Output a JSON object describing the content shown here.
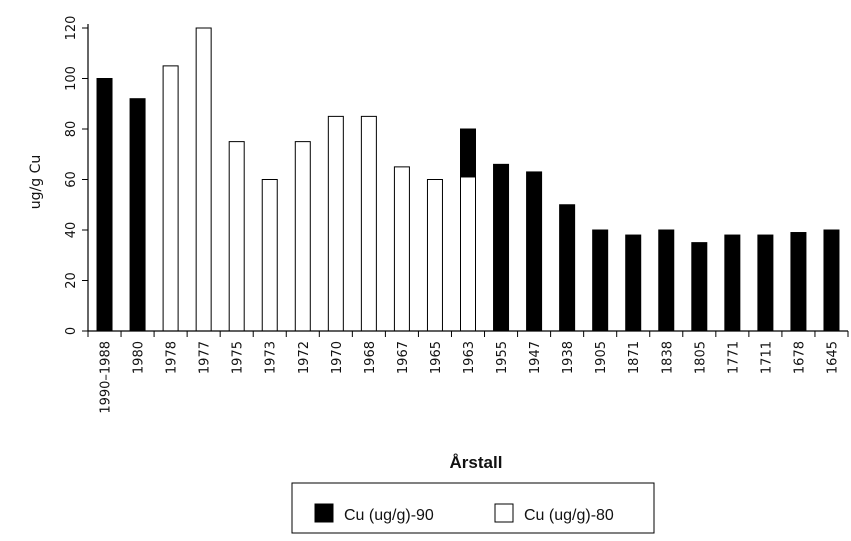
{
  "chart_data": {
    "type": "bar",
    "title": "",
    "xlabel": "Årstall",
    "ylabel": "ug/g Cu",
    "ylim": [
      0,
      120
    ],
    "yticks": [
      0,
      20,
      40,
      60,
      80,
      100,
      120
    ],
    "grid": false,
    "legend_position": "bottom",
    "categories": [
      "1990–1988",
      "1980",
      "1978",
      "1977",
      "1975",
      "1973",
      "1972",
      "1970",
      "1968",
      "1967",
      "1965",
      "1963",
      "1955",
      "1947",
      "1938",
      "1905",
      "1871",
      "1838",
      "1805",
      "1771",
      "1711",
      "1678",
      "1645"
    ],
    "series": [
      {
        "name": "Cu (ug/g)-90",
        "color": "#000000",
        "values": [
          100,
          92,
          null,
          null,
          null,
          null,
          null,
          null,
          null,
          null,
          null,
          80,
          66,
          63,
          50,
          40,
          38,
          40,
          35,
          38,
          38,
          39,
          40
        ]
      },
      {
        "name": "Cu (ug/g)-80",
        "color": "#ffffff",
        "values": [
          null,
          null,
          105,
          120,
          75,
          60,
          75,
          85,
          85,
          65,
          60,
          61,
          null,
          null,
          null,
          null,
          null,
          null,
          null,
          null,
          null,
          null,
          null
        ]
      }
    ]
  }
}
